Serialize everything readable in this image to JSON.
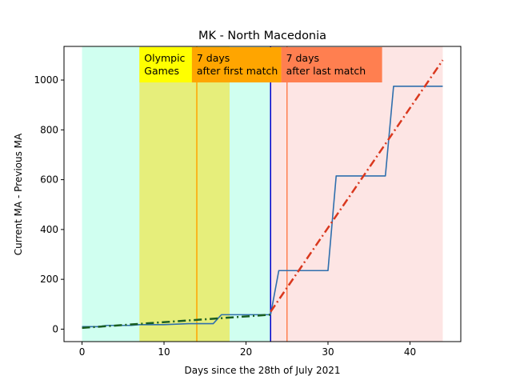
{
  "chart_data": {
    "type": "line",
    "title": "MK - North Macedonia",
    "xlabel": "Days since the 28th of July 2021",
    "ylabel": "Current MA - Previous MA",
    "xlim": [
      -2.2,
      46.2
    ],
    "ylim": [
      -50,
      1135
    ],
    "xticks": [
      0,
      10,
      20,
      30,
      40
    ],
    "yticks": [
      0,
      200,
      400,
      600,
      800,
      1000
    ],
    "grid": false,
    "regions": [
      {
        "name": "baseline",
        "x0": 0,
        "x1": 23,
        "color": "#d0fff0"
      },
      {
        "name": "olympic-games",
        "x0": 7,
        "x1": 18,
        "color": "#e6ee7b"
      },
      {
        "name": "after",
        "x0": 23,
        "x1": 44,
        "color": "#fde5e4"
      }
    ],
    "vlines": [
      {
        "x": 14,
        "color": "#ffa500"
      },
      {
        "x": 23,
        "color": "#0000cc"
      },
      {
        "x": 25,
        "color": "#ff7f50"
      }
    ],
    "annotations": [
      {
        "lines": [
          "Olympic",
          "Games"
        ],
        "x0": 7,
        "x1": 13.4,
        "bg": "#ffff00"
      },
      {
        "lines": [
          "7 days",
          "after first match"
        ],
        "x0": 13.4,
        "x1": 24.3,
        "bg": "#ffa500"
      },
      {
        "lines": [
          "7 days",
          "after last match"
        ],
        "x0": 24.3,
        "x1": 36.6,
        "bg": "#ff7f50"
      }
    ],
    "series": [
      {
        "style": "solid",
        "color": "#2f6fad",
        "x": [
          0,
          2,
          3,
          6,
          7,
          10,
          13,
          16,
          17,
          23,
          24,
          30,
          31,
          37,
          38,
          44
        ],
        "y": [
          10,
          10,
          15,
          15,
          18,
          18,
          22,
          22,
          58,
          58,
          235,
          235,
          615,
          615,
          975,
          975
        ]
      },
      {
        "style": "dashdot",
        "color": "#1a5e20",
        "x": [
          0,
          23
        ],
        "y": [
          5,
          58
        ]
      },
      {
        "style": "dashdot",
        "color": "#d9381e",
        "x": [
          23,
          44
        ],
        "y": [
          70,
          1080
        ]
      }
    ]
  }
}
